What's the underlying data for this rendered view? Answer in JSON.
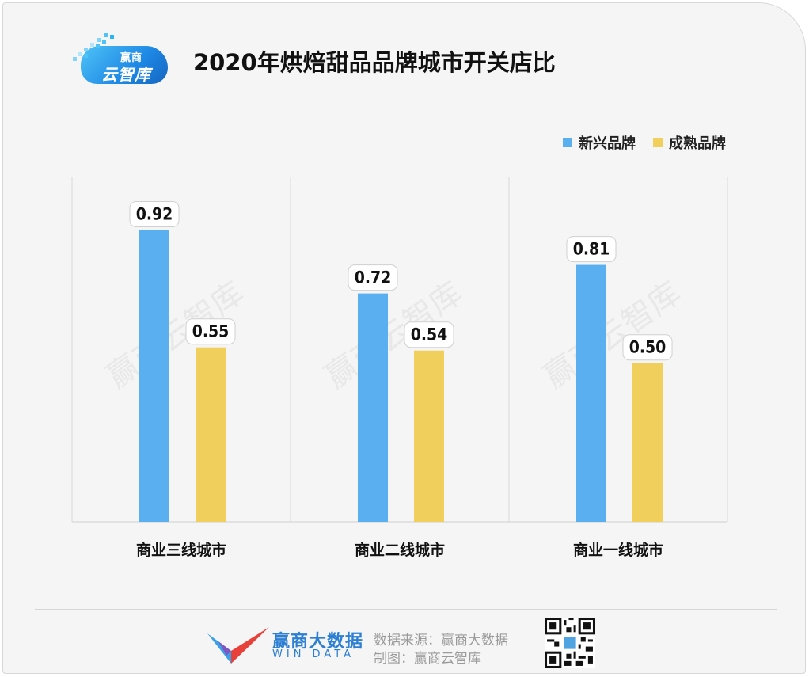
{
  "header": {
    "logo_line1": "赢商",
    "logo_line2": "云智库"
  },
  "chart_data": {
    "type": "bar",
    "title": "2020年烘焙甜品品牌城市开关店比",
    "categories": [
      "商业三线城市",
      "商业二线城市",
      "商业一线城市"
    ],
    "series": [
      {
        "name": "新兴品牌",
        "values": [
          0.92,
          0.72,
          0.81
        ],
        "color": "#5aaff0"
      },
      {
        "name": "成熟品牌",
        "values": [
          0.55,
          0.54,
          0.5
        ],
        "color": "#f0cf5d"
      }
    ],
    "data_labels": [
      "0.92",
      "0.55",
      "0.72",
      "0.54",
      "0.81",
      "0.50"
    ],
    "ylim": [
      0,
      1.0
    ],
    "legend_position": "top-right",
    "grid": false
  },
  "watermark": "赢商云智库",
  "footer": {
    "brand_cn": "赢商大数据",
    "brand_en": "WIN DATA",
    "source": "数据来源：赢商大数据",
    "credit": "制图：赢商云智库"
  }
}
